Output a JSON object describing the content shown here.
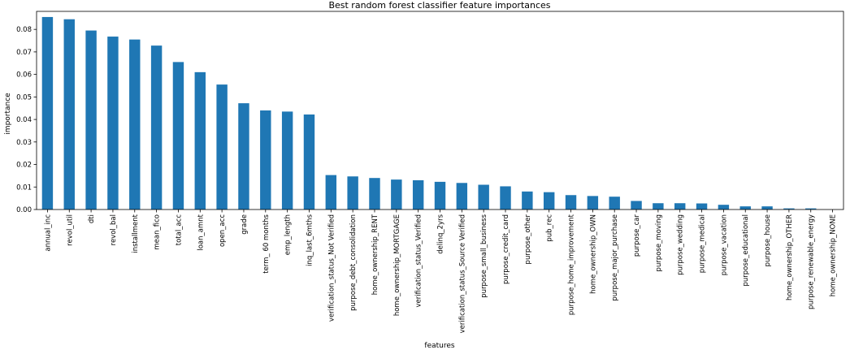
{
  "chart_data": {
    "type": "bar",
    "title": "Best random forest classifier feature importances",
    "xlabel": "features",
    "ylabel": "importance",
    "ylim": [
      0,
      0.088
    ],
    "yticks": [
      "0.00",
      "0.01",
      "0.02",
      "0.03",
      "0.04",
      "0.05",
      "0.06",
      "0.07",
      "0.08"
    ],
    "grid": false,
    "bar_color": "#1f77b4",
    "categories": [
      "annual_inc",
      "revol_util",
      "dti",
      "revol_bal",
      "installment",
      "mean_fico",
      "total_acc",
      "loan_amnt",
      "open_acc",
      "grade",
      "term_ 60 months",
      "emp_length",
      "inq_last_6mths",
      "verification_status_Not Verified",
      "purpose_debt_consolidation",
      "home_ownership_RENT",
      "home_ownership_MORTGAGE",
      "verification_status_Verified",
      "delinq_2yrs",
      "verification_status_Source Verified",
      "purpose_small_business",
      "purpose_credit_card",
      "purpose_other",
      "pub_rec",
      "purpose_home_improvement",
      "home_ownership_OWN",
      "purpose_major_purchase",
      "purpose_car",
      "purpose_moving",
      "purpose_wedding",
      "purpose_medical",
      "purpose_vacation",
      "purpose_educational",
      "purpose_house",
      "home_ownership_OTHER",
      "purpose_renewable_energy",
      "home_ownership_NONE"
    ],
    "values": [
      0.0855,
      0.0845,
      0.0795,
      0.0768,
      0.0755,
      0.0728,
      0.0655,
      0.061,
      0.0555,
      0.0472,
      0.044,
      0.0435,
      0.0422,
      0.0153,
      0.0147,
      0.014,
      0.0133,
      0.013,
      0.0123,
      0.0118,
      0.011,
      0.0103,
      0.008,
      0.0077,
      0.0064,
      0.006,
      0.0057,
      0.0038,
      0.0028,
      0.0028,
      0.0027,
      0.0021,
      0.0014,
      0.0014,
      0.0005,
      0.0005,
      0.0
    ]
  }
}
